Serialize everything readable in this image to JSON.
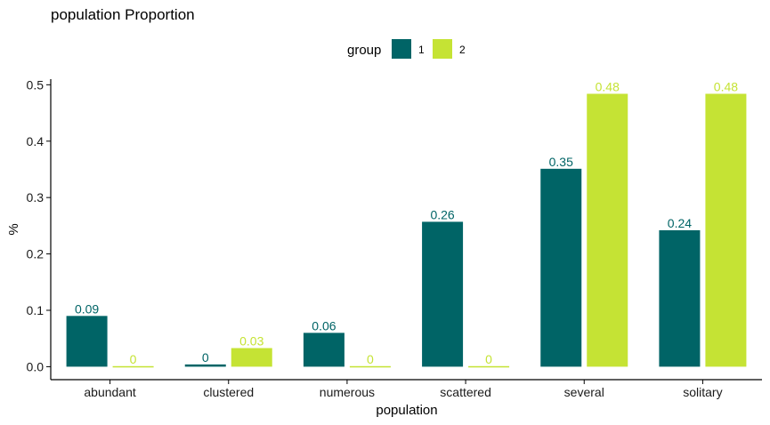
{
  "chart_data": {
    "type": "bar",
    "title": "population Proportion",
    "xlabel": "population",
    "ylabel": "%",
    "categories": [
      "abundant",
      "clustered",
      "numerous",
      "scattered",
      "several",
      "solitary"
    ],
    "series": [
      {
        "name": "1",
        "color": "#006466",
        "values": [
          0.09,
          0.004,
          0.06,
          0.257,
          0.351,
          0.242
        ],
        "labels": [
          "0.09",
          "0",
          "0.06",
          "0.26",
          "0.35",
          "0.24"
        ]
      },
      {
        "name": "2",
        "color": "#c5e334",
        "values": [
          0.001,
          0.033,
          0.001,
          0.001,
          0.484,
          0.484
        ],
        "labels": [
          "0",
          "0.03",
          "0",
          "0",
          "0.48",
          "0.48"
        ]
      }
    ],
    "yticks": [
      "0.0",
      "0.1",
      "0.2",
      "0.3",
      "0.4",
      "0.5"
    ],
    "ylim": [
      -0.023,
      0.51
    ],
    "legend": {
      "title": "group",
      "position": "top"
    },
    "grid": false
  }
}
